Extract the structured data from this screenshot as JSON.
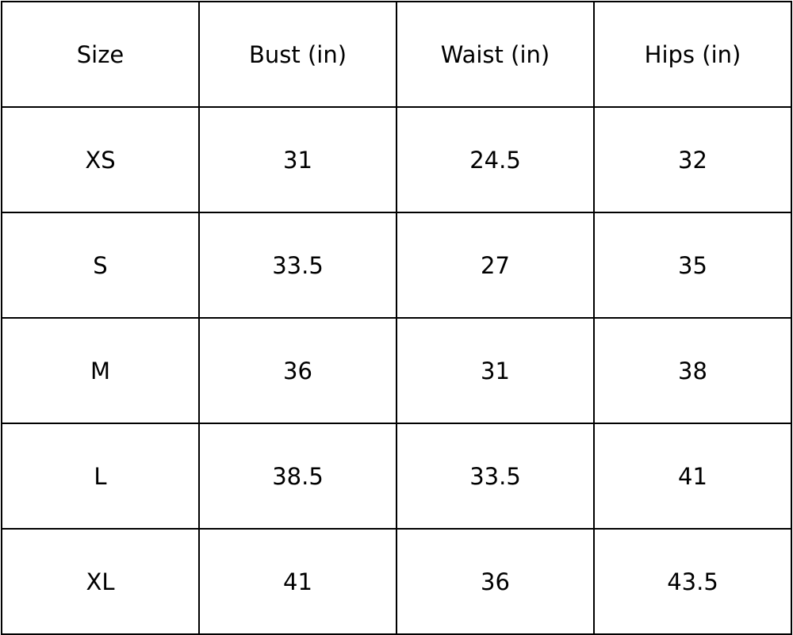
{
  "table": {
    "header": [
      "Size",
      "Bust (in)",
      "Waist (in)",
      "Hips (in)"
    ],
    "rows": [
      [
        "XS",
        "31",
        "24.5",
        "32"
      ],
      [
        "S",
        "33.5",
        "27",
        "35"
      ],
      [
        "M",
        "36",
        "31",
        "38"
      ],
      [
        "L",
        "38.5",
        "33.5",
        "41"
      ],
      [
        "XL",
        "41",
        "36",
        "43.5"
      ]
    ]
  }
}
